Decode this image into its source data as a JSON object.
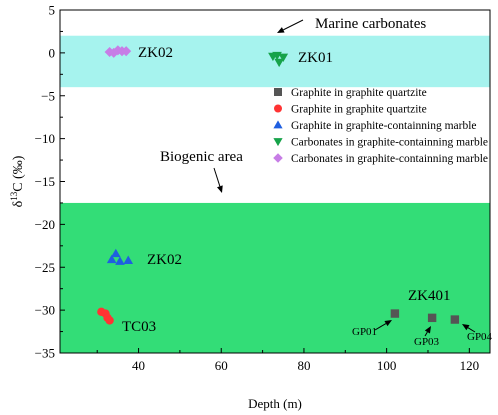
{
  "chart_data": {
    "type": "scatter",
    "xlabel": "Depth (m)",
    "ylabel_base": "δ",
    "ylabel_sup": "13",
    "ylabel_rest": "C (‰)",
    "xlim": [
      21,
      125
    ],
    "ylim": [
      -35,
      5
    ],
    "x_ticks": [
      40,
      60,
      80,
      100,
      120
    ],
    "y_ticks": [
      5,
      0,
      -5,
      -10,
      -15,
      -20,
      -25,
      -30,
      -35
    ],
    "grid": false,
    "legend_position": "top-right",
    "regions": [
      {
        "name": "Marine carbonates",
        "y_range": [
          -4,
          2
        ],
        "color": "#a6f3ee"
      },
      {
        "name": "Biogenic area",
        "y_range": [
          -35,
          -17.5
        ],
        "color": "#33dd77"
      }
    ],
    "series": [
      {
        "name": "Graphite in graphite quartzite",
        "marker": "square",
        "color": "#555555",
        "points": [
          [
            102,
            -30.4
          ],
          [
            111,
            -30.9
          ],
          [
            116.5,
            -31.1
          ]
        ]
      },
      {
        "name": "Graphite in graphite quartzite",
        "marker": "circle",
        "color": "#ff3333",
        "points": [
          [
            31,
            -30.2
          ],
          [
            32,
            -30.4
          ],
          [
            32.5,
            -30.9
          ],
          [
            33,
            -31.2
          ]
        ]
      },
      {
        "name": "Graphite in graphite-containning marble",
        "marker": "triangle-up",
        "color": "#1f5fe0",
        "points": [
          [
            33.5,
            -24.1
          ],
          [
            34.5,
            -23.4
          ],
          [
            35.5,
            -24.3
          ],
          [
            37.5,
            -24.2
          ]
        ]
      },
      {
        "name": "Carbonates in graphite-containning marble",
        "marker": "triangle-down",
        "color": "#16a34a",
        "points": [
          [
            72.5,
            -0.4
          ],
          [
            73.5,
            -0.3
          ],
          [
            74,
            -1.1
          ],
          [
            75,
            -0.5
          ]
        ]
      },
      {
        "name": "Carbonates in graphite-containning marble",
        "marker": "diamond",
        "color": "#c77de6",
        "points": [
          [
            33,
            0.1
          ],
          [
            34,
            0
          ],
          [
            35,
            0.3
          ],
          [
            36,
            0.2
          ],
          [
            37,
            0.2
          ]
        ]
      }
    ],
    "annotations": [
      {
        "text": "Marine carbonates"
      },
      {
        "text": "Biogenic area"
      },
      {
        "text": "ZK02"
      },
      {
        "text": "ZK01"
      },
      {
        "text": "ZK02"
      },
      {
        "text": "TC03"
      },
      {
        "text": "ZK401"
      },
      {
        "text": "GP01"
      },
      {
        "text": "GP03"
      },
      {
        "text": "GP04"
      }
    ]
  }
}
